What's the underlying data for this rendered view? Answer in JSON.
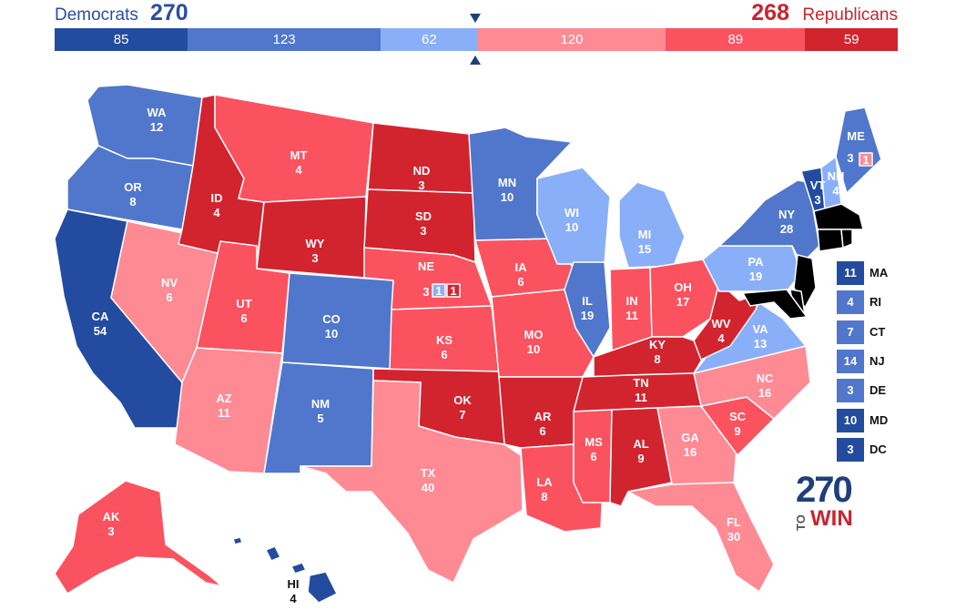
{
  "colors": {
    "safe_dem": "#234ca0",
    "likely_dem": "#5077cc",
    "lean_dem": "#8aaff9",
    "lean_rep": "#fe8a94",
    "likely_rep": "#fb5260",
    "safe_rep": "#d2242e",
    "dem_text": "#2a4fa0",
    "rep_text": "#c8242f"
  },
  "header": {
    "dem_label": "Democrats",
    "dem_total": "270",
    "rep_total": "268",
    "rep_label": "Republicans"
  },
  "ev_bar": [
    {
      "category": "safe_dem",
      "value": 85,
      "label": "85"
    },
    {
      "category": "likely_dem",
      "value": 123,
      "label": "123"
    },
    {
      "category": "lean_dem",
      "value": 62,
      "label": "62"
    },
    {
      "category": "lean_rep",
      "value": 120,
      "label": "120"
    },
    {
      "category": "likely_rep",
      "value": 89,
      "label": "89"
    },
    {
      "category": "safe_rep",
      "value": 59,
      "label": "59"
    }
  ],
  "states": {
    "WA": {
      "abbr": "WA",
      "ev": "12",
      "rating": "likely_dem"
    },
    "OR": {
      "abbr": "OR",
      "ev": "8",
      "rating": "likely_dem"
    },
    "CA": {
      "abbr": "CA",
      "ev": "54",
      "rating": "safe_dem"
    },
    "NV": {
      "abbr": "NV",
      "ev": "6",
      "rating": "lean_rep"
    },
    "ID": {
      "abbr": "ID",
      "ev": "4",
      "rating": "safe_rep"
    },
    "MT": {
      "abbr": "MT",
      "ev": "4",
      "rating": "likely_rep"
    },
    "WY": {
      "abbr": "WY",
      "ev": "3",
      "rating": "safe_rep"
    },
    "UT": {
      "abbr": "UT",
      "ev": "6",
      "rating": "likely_rep"
    },
    "AZ": {
      "abbr": "AZ",
      "ev": "11",
      "rating": "lean_rep"
    },
    "CO": {
      "abbr": "CO",
      "ev": "10",
      "rating": "likely_dem"
    },
    "NM": {
      "abbr": "NM",
      "ev": "5",
      "rating": "likely_dem"
    },
    "ND": {
      "abbr": "ND",
      "ev": "3",
      "rating": "safe_rep"
    },
    "SD": {
      "abbr": "SD",
      "ev": "3",
      "rating": "safe_rep"
    },
    "NE": {
      "abbr": "NE",
      "ev": "3",
      "rating": "likely_rep"
    },
    "KS": {
      "abbr": "KS",
      "ev": "6",
      "rating": "likely_rep"
    },
    "OK": {
      "abbr": "OK",
      "ev": "7",
      "rating": "safe_rep"
    },
    "TX": {
      "abbr": "TX",
      "ev": "40",
      "rating": "lean_rep"
    },
    "MN": {
      "abbr": "MN",
      "ev": "10",
      "rating": "likely_dem"
    },
    "IA": {
      "abbr": "IA",
      "ev": "6",
      "rating": "likely_rep"
    },
    "MO": {
      "abbr": "MO",
      "ev": "10",
      "rating": "likely_rep"
    },
    "AR": {
      "abbr": "AR",
      "ev": "6",
      "rating": "safe_rep"
    },
    "LA": {
      "abbr": "LA",
      "ev": "8",
      "rating": "likely_rep"
    },
    "WI": {
      "abbr": "WI",
      "ev": "10",
      "rating": "lean_dem"
    },
    "IL": {
      "abbr": "IL",
      "ev": "19",
      "rating": "likely_dem"
    },
    "MI": {
      "abbr": "MI",
      "ev": "15",
      "rating": "lean_dem"
    },
    "IN": {
      "abbr": "IN",
      "ev": "11",
      "rating": "likely_rep"
    },
    "OH": {
      "abbr": "OH",
      "ev": "17",
      "rating": "likely_rep"
    },
    "KY": {
      "abbr": "KY",
      "ev": "8",
      "rating": "safe_rep"
    },
    "TN": {
      "abbr": "TN",
      "ev": "11",
      "rating": "safe_rep"
    },
    "MS": {
      "abbr": "MS",
      "ev": "6",
      "rating": "likely_rep"
    },
    "AL": {
      "abbr": "AL",
      "ev": "9",
      "rating": "safe_rep"
    },
    "GA": {
      "abbr": "GA",
      "ev": "16",
      "rating": "lean_rep"
    },
    "FL": {
      "abbr": "FL",
      "ev": "30",
      "rating": "lean_rep"
    },
    "SC": {
      "abbr": "SC",
      "ev": "9",
      "rating": "likely_rep"
    },
    "NC": {
      "abbr": "NC",
      "ev": "16",
      "rating": "lean_rep"
    },
    "VA": {
      "abbr": "VA",
      "ev": "13",
      "rating": "lean_dem"
    },
    "WV": {
      "abbr": "WV",
      "ev": "4",
      "rating": "safe_rep"
    },
    "PA": {
      "abbr": "PA",
      "ev": "19",
      "rating": "lean_dem"
    },
    "NY": {
      "abbr": "NY",
      "ev": "28",
      "rating": "likely_dem"
    },
    "VT": {
      "abbr": "VT",
      "ev": "3",
      "rating": "safe_dem"
    },
    "NH": {
      "abbr": "NH",
      "ev": "4",
      "rating": "lean_dem"
    },
    "ME": {
      "abbr": "ME",
      "ev": "3",
      "rating": "likely_dem"
    },
    "AK": {
      "abbr": "AK",
      "ev": "3",
      "rating": "likely_rep"
    },
    "HI": {
      "abbr": "HI",
      "ev": "4",
      "rating": "safe_dem"
    }
  },
  "split_votes": {
    "ne_d2": {
      "ev": "1",
      "rating": "lean_dem"
    },
    "ne_d3": {
      "ev": "1",
      "rating": "safe_rep"
    },
    "me_d2": {
      "ev": "1",
      "rating": "lean_rep"
    }
  },
  "small_states": [
    {
      "abbr": "MA",
      "ev": "11",
      "rating": "safe_dem"
    },
    {
      "abbr": "RI",
      "ev": "4",
      "rating": "likely_dem"
    },
    {
      "abbr": "CT",
      "ev": "7",
      "rating": "likely_dem"
    },
    {
      "abbr": "NJ",
      "ev": "14",
      "rating": "likely_dem"
    },
    {
      "abbr": "DE",
      "ev": "3",
      "rating": "likely_dem"
    },
    {
      "abbr": "MD",
      "ev": "10",
      "rating": "safe_dem"
    },
    {
      "abbr": "DC",
      "ev": "3",
      "rating": "safe_dem"
    }
  ],
  "logo": {
    "number": "270",
    "to": "TO",
    "win": "WIN"
  }
}
